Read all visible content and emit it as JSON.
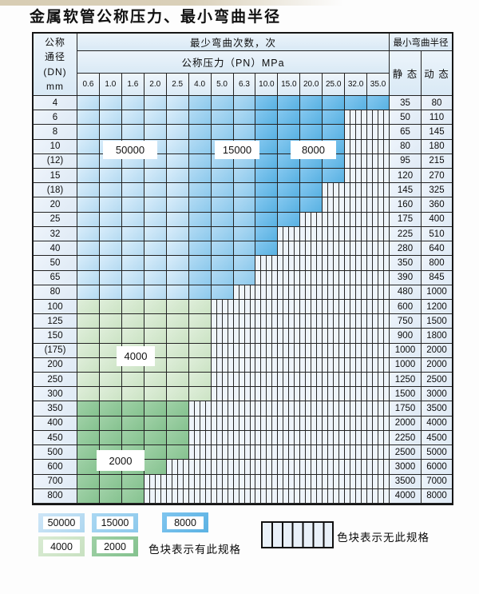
{
  "title": "金属软管公称压力、最小弯曲半径",
  "table": {
    "corner": {
      "line1": "公称",
      "line2": "通径",
      "line3": "(DN)",
      "line4": "mm"
    },
    "bend_cycles_header": "最少弯曲次数，次",
    "pressure_header": "公称压力（PN）MPa",
    "bend_radius_header": "最小弯曲半径",
    "static_header": "静 态",
    "dynamic_header": "动 态",
    "pressures": [
      "0.6",
      "1.0",
      "1.6",
      "2.0",
      "2.5",
      "4.0",
      "5.0",
      "6.3",
      "10.0",
      "15.0",
      "20.0",
      "25.0",
      "32.0",
      "35.0"
    ],
    "rows": [
      {
        "dn": "4",
        "through": "35.0",
        "group": "blue",
        "static": "35",
        "dynamic": "80"
      },
      {
        "dn": "6",
        "through": "25.0",
        "group": "blue",
        "static": "50",
        "dynamic": "110"
      },
      {
        "dn": "8",
        "through": "25.0",
        "group": "blue",
        "static": "65",
        "dynamic": "145"
      },
      {
        "dn": "10",
        "through": "25.0",
        "group": "blue",
        "static": "80",
        "dynamic": "180"
      },
      {
        "dn": "(12)",
        "through": "25.0",
        "group": "blue",
        "static": "95",
        "dynamic": "215"
      },
      {
        "dn": "15",
        "through": "25.0",
        "group": "blue",
        "static": "120",
        "dynamic": "270"
      },
      {
        "dn": "(18)",
        "through": "20.0",
        "group": "blue",
        "static": "145",
        "dynamic": "325"
      },
      {
        "dn": "20",
        "through": "20.0",
        "group": "blue",
        "static": "160",
        "dynamic": "360"
      },
      {
        "dn": "25",
        "through": "15.0",
        "group": "blue",
        "static": "175",
        "dynamic": "400"
      },
      {
        "dn": "32",
        "through": "10.0",
        "group": "blue",
        "static": "225",
        "dynamic": "510"
      },
      {
        "dn": "40",
        "through": "10.0",
        "group": "blue",
        "static": "280",
        "dynamic": "640"
      },
      {
        "dn": "50",
        "through": "6.3",
        "group": "blue",
        "static": "350",
        "dynamic": "800"
      },
      {
        "dn": "65",
        "through": "6.3",
        "group": "blue",
        "static": "390",
        "dynamic": "845"
      },
      {
        "dn": "80",
        "through": "5.0",
        "group": "blue",
        "static": "480",
        "dynamic": "1000"
      },
      {
        "dn": "100",
        "through": "4.0",
        "group": "green-light",
        "static": "600",
        "dynamic": "1200"
      },
      {
        "dn": "125",
        "through": "4.0",
        "group": "green-light",
        "static": "750",
        "dynamic": "1500"
      },
      {
        "dn": "150",
        "through": "4.0",
        "group": "green-light",
        "static": "900",
        "dynamic": "1800"
      },
      {
        "dn": "(175)",
        "through": "4.0",
        "group": "green-light",
        "static": "1000",
        "dynamic": "2000"
      },
      {
        "dn": "200",
        "through": "4.0",
        "group": "green-light",
        "static": "1000",
        "dynamic": "2000"
      },
      {
        "dn": "250",
        "through": "4.0",
        "group": "green-light",
        "static": "1250",
        "dynamic": "2500"
      },
      {
        "dn": "300",
        "through": "4.0",
        "group": "green-light",
        "static": "1500",
        "dynamic": "3000"
      },
      {
        "dn": "350",
        "through": "2.5",
        "group": "green-dark",
        "static": "1750",
        "dynamic": "3500"
      },
      {
        "dn": "400",
        "through": "2.5",
        "group": "green-dark",
        "static": "2000",
        "dynamic": "4000"
      },
      {
        "dn": "450",
        "through": "2.5",
        "group": "green-dark",
        "static": "2250",
        "dynamic": "4500"
      },
      {
        "dn": "500",
        "through": "2.5",
        "group": "green-dark",
        "static": "2500",
        "dynamic": "5000"
      },
      {
        "dn": "600",
        "through": "2.0",
        "group": "green-dark",
        "static": "3000",
        "dynamic": "6000"
      },
      {
        "dn": "700",
        "through": "1.6",
        "group": "green-dark",
        "static": "3500",
        "dynamic": "7000"
      },
      {
        "dn": "800",
        "through": "1.6",
        "group": "green-dark",
        "static": "4000",
        "dynamic": "8000"
      }
    ]
  },
  "overlays": {
    "cycles_50000": "50000",
    "cycles_15000": "15000",
    "cycles_8000": "8000",
    "cycles_4000": "4000",
    "cycles_2000": "2000"
  },
  "legend": {
    "items": [
      {
        "label": "50000"
      },
      {
        "label": "15000"
      },
      {
        "label": "8000"
      },
      {
        "label": "4000"
      },
      {
        "label": "2000"
      }
    ],
    "has_spec_text": "色块表示有此规格",
    "no_spec_text": "色块表示无此规格"
  },
  "colors": {
    "cycles_50000": "#b4daf1",
    "cycles_15000": "#8cc9ec",
    "cycles_8000": "#58b1e2",
    "cycles_4000": "#cbe3c4",
    "cycles_2000": "#85c28f",
    "no_spec_background": "#eef4fa",
    "grid_line": "#232323"
  }
}
